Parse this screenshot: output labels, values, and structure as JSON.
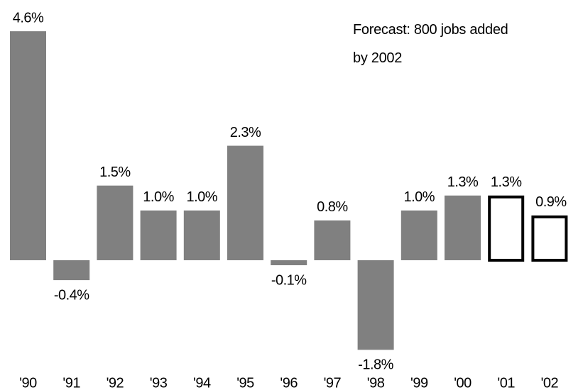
{
  "chart_data": {
    "type": "bar",
    "annotation": "Forecast: 800 jobs added by 2002",
    "categories": [
      "'90",
      "'91",
      "'92",
      "'93",
      "'94",
      "'95",
      "'96",
      "'97",
      "'98",
      "'99",
      "'00",
      "'01",
      "'02"
    ],
    "values": [
      4.6,
      -0.4,
      1.5,
      1.0,
      1.0,
      2.3,
      -0.1,
      0.8,
      -1.8,
      1.0,
      1.3,
      1.3,
      0.9
    ],
    "value_labels": [
      "4.6%",
      "-0.4%",
      "1.5%",
      "1.0%",
      "1.0%",
      "2.3%",
      "-0.1%",
      "0.8%",
      "-1.8%",
      "1.0%",
      "1.3%",
      "1.3%",
      "0.9%"
    ],
    "color": "#808080",
    "outlined_categories": [
      "'01",
      "'02"
    ]
  }
}
